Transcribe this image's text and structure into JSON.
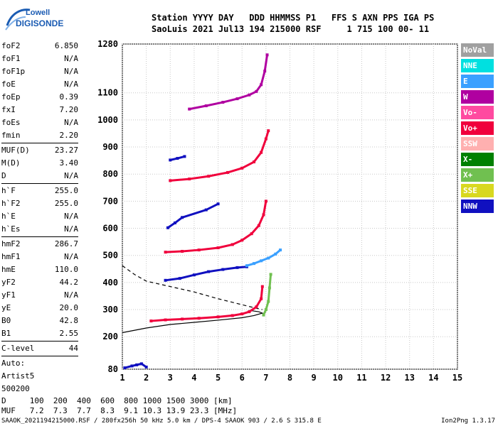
{
  "logo": {
    "line1": "Lowell",
    "line2": "DIGISONDE"
  },
  "header": {
    "row1": "Station YYYY DAY   DDD HHMMSS P1   FFS S AXN PPS IGA PS",
    "row2": "SaoLuis 2021 Jul13 194 215000 RSF     1 715 100 00- 11"
  },
  "params_a": [
    {
      "name": "foF2",
      "value": "6.850"
    },
    {
      "name": "foF1",
      "value": "N/A"
    },
    {
      "name": "foF1p",
      "value": "N/A"
    },
    {
      "name": "foE",
      "value": "N/A"
    },
    {
      "name": "foEp",
      "value": "0.39"
    },
    {
      "name": "fxI",
      "value": "7.20"
    },
    {
      "name": "foEs",
      "value": "N/A"
    },
    {
      "name": "fmin",
      "value": "2.20"
    }
  ],
  "params_b": [
    {
      "name": "MUF(D)",
      "value": "23.27"
    },
    {
      "name": "M(D)",
      "value": "3.40"
    },
    {
      "name": "D",
      "value": "N/A"
    }
  ],
  "params_c": [
    {
      "name": "h`F",
      "value": "255.0"
    },
    {
      "name": "h`F2",
      "value": "255.0"
    },
    {
      "name": "h`E",
      "value": "N/A"
    },
    {
      "name": "h`Es",
      "value": "N/A"
    }
  ],
  "params_d": [
    {
      "name": "hmF2",
      "value": "286.7"
    },
    {
      "name": "hmF1",
      "value": "N/A"
    },
    {
      "name": "hmE",
      "value": "110.0"
    },
    {
      "name": "yF2",
      "value": "44.2"
    },
    {
      "name": "yF1",
      "value": "N/A"
    },
    {
      "name": "yE",
      "value": "20.0"
    },
    {
      "name": "B0",
      "value": "42.8"
    },
    {
      "name": "B1",
      "value": "2.55"
    }
  ],
  "clevel": {
    "name": "C-level",
    "value": "44"
  },
  "auto": {
    "line1": "Auto:",
    "line2": "Artist5",
    "line3": "500200"
  },
  "legend": [
    {
      "label": "NoVal",
      "color": "#a0a0a0"
    },
    {
      "label": "NNE",
      "color": "#00e0e0"
    },
    {
      "label": "E",
      "color": "#3aa0ff"
    },
    {
      "label": "W",
      "color": "#b000a0"
    },
    {
      "label": "Vo-",
      "color": "#ff4aa0"
    },
    {
      "label": "Vo+",
      "color": "#f0003c"
    },
    {
      "label": "SSW",
      "color": "#ffb0b0"
    },
    {
      "label": "X-",
      "color": "#008000"
    },
    {
      "label": "X+",
      "color": "#70c050"
    },
    {
      "label": "SSE",
      "color": "#d8d820"
    },
    {
      "label": "NNW",
      "color": "#1010c0"
    }
  ],
  "muf_table": {
    "d_row": "D     100  200  400  600  800 1000 1500 3000 [km]",
    "muf_row": "MUF   7.2  7.3  7.7  8.3  9.1 10.3 13.9 23.3 [MHz]"
  },
  "footer": {
    "left": "SAAOK_2021194215000.RSF / 280fx256h 50 kHz 5.0 km / DPS-4 SAAOK 903 / 2.6 S 315.8 E",
    "right": "Ion2Png 1.3.17"
  },
  "chart_data": {
    "type": "scatter",
    "title": "",
    "xlabel": "",
    "ylabel": "",
    "xlim": [
      1,
      15
    ],
    "ylim": [
      80,
      1280
    ],
    "x_ticks": [
      1,
      2,
      3,
      4,
      5,
      6,
      7,
      8,
      9,
      10,
      11,
      12,
      13,
      14,
      15
    ],
    "y_ticks": [
      80,
      200,
      300,
      400,
      500,
      600,
      700,
      800,
      900,
      1000,
      1100,
      1280
    ],
    "grid": true,
    "traces": [
      {
        "name": "O trace",
        "color": "#f0003c",
        "x": [
          2.2,
          2.8,
          3.5,
          4.2,
          5.0,
          5.6,
          6.0,
          6.3,
          6.6,
          6.8,
          6.85
        ],
        "y": [
          258,
          262,
          265,
          268,
          273,
          278,
          284,
          292,
          310,
          340,
          385
        ]
      },
      {
        "name": "X trace",
        "color": "#70c050",
        "x": [
          6.9,
          7.0,
          7.1,
          7.15,
          7.2
        ],
        "y": [
          280,
          300,
          330,
          380,
          430
        ]
      },
      {
        "name": "2nd hop",
        "color": "#f0003c",
        "x": [
          2.8,
          3.5,
          4.2,
          5.0,
          5.6,
          6.0,
          6.4,
          6.7,
          6.9,
          7.0
        ],
        "y": [
          512,
          515,
          520,
          528,
          540,
          556,
          580,
          610,
          650,
          700
        ]
      },
      {
        "name": "3rd hop",
        "color": "#f0003c",
        "x": [
          3.0,
          3.8,
          4.6,
          5.4,
          6.0,
          6.5,
          6.8,
          7.0,
          7.1
        ],
        "y": [
          776,
          782,
          792,
          806,
          822,
          845,
          880,
          930,
          960
        ]
      },
      {
        "name": "4th hop",
        "color": "#b000a0",
        "x": [
          3.8,
          4.5,
          5.2,
          5.8,
          6.3,
          6.6,
          6.8,
          6.95,
          7.05
        ],
        "y": [
          1040,
          1052,
          1065,
          1078,
          1092,
          1105,
          1130,
          1180,
          1240
        ]
      },
      {
        "name": "oblique",
        "color": "#1010c0",
        "x": [
          2.8,
          3.4,
          4.0,
          4.6,
          5.2,
          5.8,
          6.2
        ],
        "y": [
          408,
          415,
          428,
          440,
          448,
          455,
          458
        ]
      },
      {
        "name": "E oblique",
        "color": "#3aa0ff",
        "x": [
          6.2,
          6.5,
          6.8,
          7.1,
          7.4,
          7.6
        ],
        "y": [
          462,
          470,
          480,
          490,
          505,
          520
        ]
      },
      {
        "name": "NNW cluster",
        "color": "#1010c0",
        "x": [
          2.9,
          3.2,
          3.5,
          4.5,
          5.0
        ],
        "y": [
          602,
          620,
          640,
          668,
          690
        ]
      },
      {
        "name": "NNW cluster 2",
        "color": "#1010c0",
        "x": [
          3.0,
          3.3,
          3.6
        ],
        "y": [
          852,
          858,
          865
        ]
      },
      {
        "name": "low echoes",
        "color": "#1010c0",
        "x": [
          1.1,
          1.4,
          1.6,
          1.8,
          2.0
        ],
        "y": [
          85,
          92,
          96,
          100,
          88
        ]
      }
    ],
    "profile_o": {
      "x": [
        1.0,
        2.0,
        3.0,
        4.0,
        5.0,
        6.0,
        6.5,
        6.85,
        6.7,
        6.3
      ],
      "y": [
        215,
        232,
        245,
        253,
        261,
        270,
        278,
        287,
        292,
        297
      ]
    },
    "profile_dashed": {
      "x": [
        1.0,
        1.5,
        2.0,
        3.0,
        4.0,
        5.0,
        6.0,
        6.5,
        6.85
      ],
      "y": [
        462,
        430,
        405,
        385,
        365,
        340,
        318,
        307,
        300
      ]
    }
  }
}
